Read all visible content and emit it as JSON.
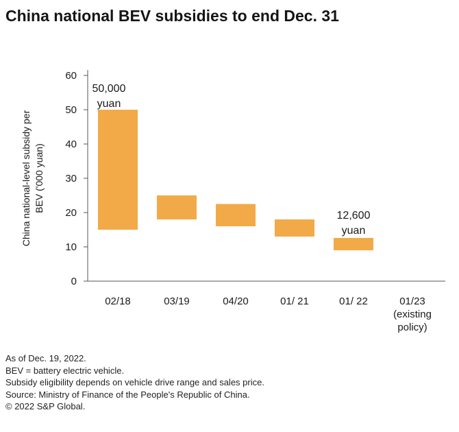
{
  "title": "China national BEV subsidies to end Dec. 31",
  "colors": {
    "bar": "#F2AA48",
    "axis": "#555555",
    "text": "#1a1a1a"
  },
  "chart_data": {
    "type": "bar",
    "subtype": "floating-range",
    "categories": [
      "02/18",
      "03/19",
      "04/20",
      "01/ 21",
      "01/ 22",
      "01/23 (existing policy)"
    ],
    "category_label_lines": [
      [
        "02/18"
      ],
      [
        "03/19"
      ],
      [
        "04/20"
      ],
      [
        "01/ 21"
      ],
      [
        "01/ 22"
      ],
      [
        "01/23",
        "(existing",
        "policy)"
      ]
    ],
    "ranges": [
      [
        15,
        50
      ],
      [
        18,
        25
      ],
      [
        16,
        22.5
      ],
      [
        13,
        18
      ],
      [
        9,
        12.6
      ],
      null
    ],
    "ylabel_lines": [
      "China national-level subsidy per",
      "BEV ('000 yuan)"
    ],
    "ylim": [
      0,
      60
    ],
    "yticks": [
      0,
      10,
      20,
      30,
      40,
      50,
      60
    ],
    "annotations": [
      {
        "category_index": 0,
        "lines": [
          "50,000",
          "yuan"
        ]
      },
      {
        "category_index": 4,
        "lines": [
          "12,600",
          "yuan"
        ]
      }
    ],
    "grid": false,
    "legend": "none"
  },
  "footnotes": [
    "As of Dec. 19, 2022.",
    "BEV = battery electric vehicle.",
    "Subsidy eligibility depends on vehicle drive range and sales price.",
    "Source: Ministry of Finance of the People's Republic of China.",
    "© 2022 S&P Global."
  ]
}
